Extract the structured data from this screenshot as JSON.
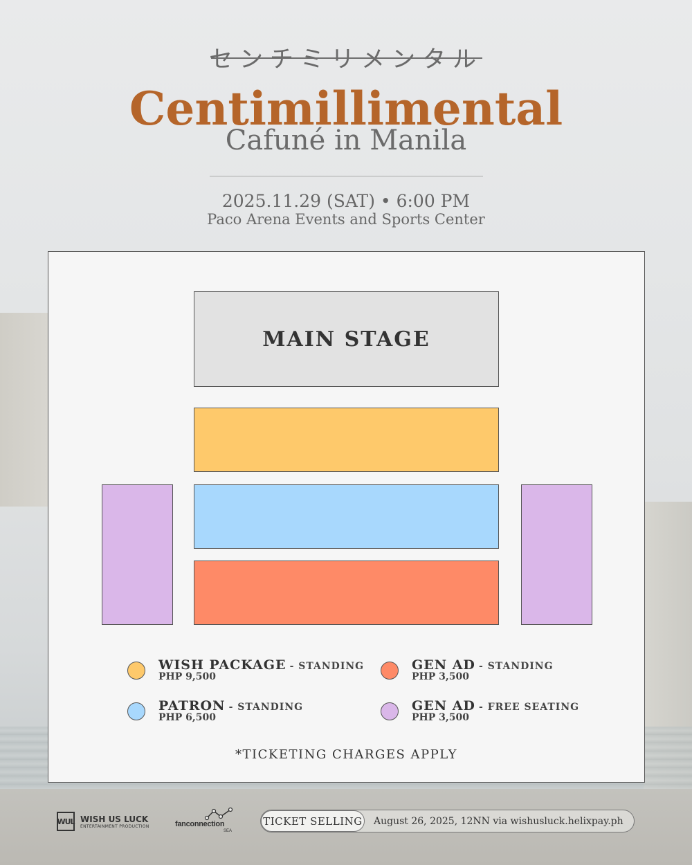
{
  "header": {
    "japanese_title": "センチミリメンタル",
    "title": "Centimillimental",
    "subtitle": "Cafuné in Manila",
    "date": "2025.11.29 (SAT) • 6:00 PM",
    "venue": "Paco Arena Events and Sports Center"
  },
  "map": {
    "stage_label": "MAIN STAGE",
    "colors": {
      "wish": "#fec96b",
      "patron": "#a8d8fd",
      "gen_ad_standing": "#fe8a67",
      "gen_ad_free": "#dab7e9"
    }
  },
  "legend": [
    {
      "name": "WISH PACKAGE",
      "type": "- STANDING",
      "price": "PHP 9,500"
    },
    {
      "name": "PATRON",
      "type": "- STANDING",
      "price": "PHP 6,500"
    },
    {
      "name": "GEN AD",
      "type": "- STANDING",
      "price": "PHP 3,500"
    },
    {
      "name": "GEN AD",
      "type": "- FREE SEATING",
      "price": "PHP 3,500"
    }
  ],
  "note": "*TICKETING CHARGES APPLY",
  "footer": {
    "wul_mark": "WUL",
    "wul_name": "WISH US LUCK",
    "wul_sub": "ENTERTAINMENT PRODUCTION",
    "fc_name": "fanconnection",
    "fc_sub": "SEA",
    "ticket_label": "TICKET SELLING",
    "ticket_info": "August 26, 2025, 12NN via wishusluck.helixpay.ph"
  }
}
